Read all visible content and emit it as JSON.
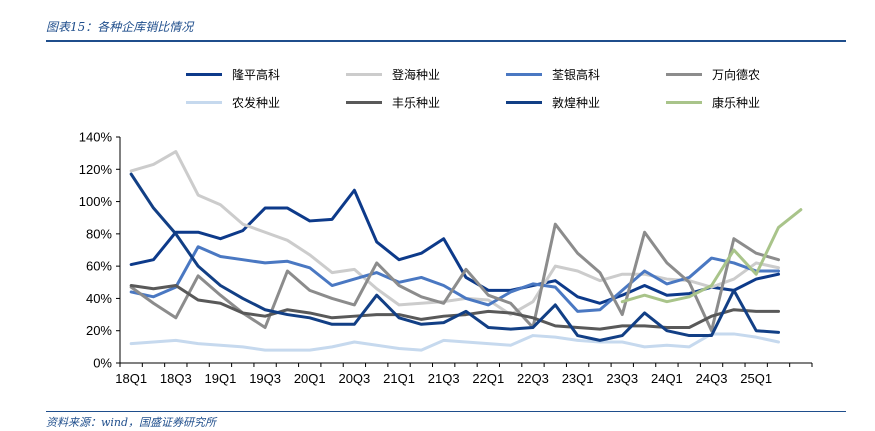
{
  "header": {
    "title": "图表15：各种企库销比情况"
  },
  "footer": {
    "source": "资料来源：wind，国盛证券研究所"
  },
  "chart_data": {
    "type": "line",
    "title": "",
    "xlabel": "",
    "ylabel": "",
    "ylim": [
      0,
      140
    ],
    "y_ticks": [
      "0%",
      "20%",
      "40%",
      "60%",
      "80%",
      "100%",
      "120%",
      "140%"
    ],
    "y_tick_values": [
      0,
      20,
      40,
      60,
      80,
      100,
      120,
      140
    ],
    "x_tick_labels": [
      "18Q1",
      "18Q3",
      "19Q1",
      "19Q3",
      "20Q1",
      "20Q3",
      "21Q1",
      "21Q3",
      "22Q1",
      "22Q3",
      "23Q1",
      "23Q3",
      "24Q1",
      "24Q3",
      "25Q1"
    ],
    "x_tick_positions": [
      0,
      2,
      4,
      6,
      8,
      10,
      12,
      14,
      16,
      18,
      20,
      22,
      24,
      26,
      28
    ],
    "x_count": 31,
    "grid": false,
    "legend_position": "top",
    "series": [
      {
        "name": "隆平高科",
        "color": "#0d3a8a",
        "width": 3,
        "start": 0,
        "values": [
          61,
          64,
          81,
          81,
          77,
          82,
          96,
          96,
          88,
          89,
          107,
          75,
          64,
          68,
          77,
          53,
          45,
          45,
          48,
          51,
          41,
          37,
          42,
          48,
          42,
          43,
          47,
          45,
          52,
          55,
          null
        ]
      },
      {
        "name": "登海种业",
        "color": "#cccccc",
        "width": 3,
        "start": 0,
        "values": [
          119,
          123,
          131,
          104,
          98,
          86,
          81,
          76,
          67,
          56,
          58,
          46,
          36,
          37,
          38,
          40,
          39,
          30,
          38,
          60,
          57,
          51,
          55,
          55,
          52,
          51,
          47,
          52,
          62,
          59,
          null
        ]
      },
      {
        "name": "荃银高科",
        "color": "#4a78c2",
        "width": 3,
        "start": 0,
        "values": [
          44,
          41,
          47,
          72,
          66,
          64,
          62,
          63,
          59,
          48,
          52,
          56,
          50,
          53,
          48,
          40,
          36,
          44,
          49,
          47,
          32,
          33,
          45,
          57,
          49,
          53,
          65,
          62,
          57,
          57,
          null
        ]
      },
      {
        "name": "万向德农",
        "color": "#8c8c8c",
        "width": 3,
        "start": 0,
        "values": [
          47,
          37,
          28,
          54,
          42,
          31,
          22,
          57,
          45,
          40,
          36,
          62,
          48,
          41,
          37,
          58,
          42,
          37,
          22,
          86,
          68,
          56,
          30,
          81,
          62,
          50,
          20,
          77,
          68,
          64,
          null
        ]
      },
      {
        "name": "农发种业",
        "color": "#c6d9ee",
        "width": 3,
        "start": 0,
        "values": [
          12,
          13,
          14,
          12,
          11,
          10,
          8,
          8,
          8,
          10,
          13,
          11,
          9,
          8,
          14,
          13,
          12,
          11,
          17,
          16,
          14,
          13,
          13,
          10,
          11,
          10,
          18,
          18,
          16,
          13,
          null
        ]
      },
      {
        "name": "丰乐种业",
        "color": "#595959",
        "width": 3,
        "start": 0,
        "values": [
          48,
          46,
          48,
          39,
          37,
          31,
          29,
          33,
          31,
          28,
          29,
          30,
          30,
          27,
          29,
          30,
          32,
          31,
          28,
          23,
          22,
          21,
          23,
          23,
          22,
          22,
          29,
          33,
          32,
          32,
          null
        ]
      },
      {
        "name": "敦煌种业",
        "color": "#123f85",
        "width": 3,
        "start": 0,
        "values": [
          117,
          96,
          80,
          60,
          48,
          40,
          33,
          30,
          28,
          24,
          24,
          42,
          28,
          24,
          25,
          32,
          22,
          21,
          22,
          36,
          17,
          14,
          17,
          31,
          20,
          17,
          17,
          45,
          20,
          19,
          null
        ]
      },
      {
        "name": "康乐种业",
        "color": "#a9c48a",
        "width": 3,
        "start": 22,
        "values": [
          38,
          42,
          38,
          41,
          48,
          70,
          55,
          84,
          95
        ]
      }
    ]
  }
}
